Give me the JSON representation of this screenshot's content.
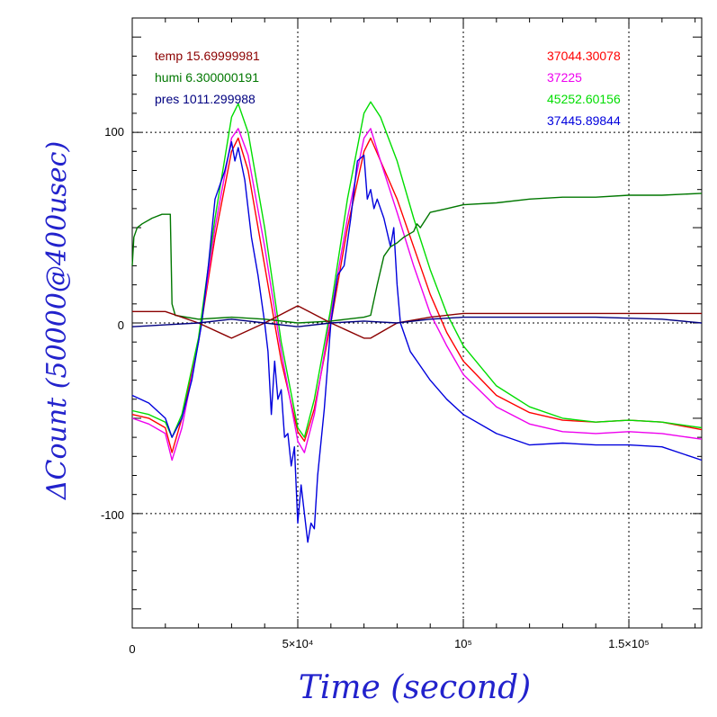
{
  "chart_data": {
    "type": "line",
    "xlabel": "Time (second)",
    "ylabel": "ΔCount (50000@400usec)",
    "xlim": [
      0,
      172000
    ],
    "ylim": [
      -160,
      160
    ],
    "grid": true,
    "x_ticks": [
      {
        "value": 0,
        "label": "0"
      },
      {
        "value": 50000,
        "label": "5×10⁴"
      },
      {
        "value": 100000,
        "label": "10⁵"
      },
      {
        "value": 150000,
        "label": "1.5×10⁵"
      }
    ],
    "y_ticks": [
      {
        "value": 100,
        "label": "100"
      },
      {
        "value": 0,
        "label": "0"
      },
      {
        "value": -100,
        "label": "-100"
      }
    ],
    "annotations_left": [
      {
        "text": "temp 15.69999981",
        "color": "#8b0000"
      },
      {
        "text": "humi 6.300000191",
        "color": "#007700"
      },
      {
        "text": "pres 1011.299988",
        "color": "#000080"
      }
    ],
    "annotations_right": [
      {
        "text": "37044.30078",
        "color": "#ff0000"
      },
      {
        "text": "37225",
        "color": "#ee00ee"
      },
      {
        "text": "45252.60156",
        "color": "#00dd00"
      },
      {
        "text": "37445.89844",
        "color": "#0000dd"
      }
    ],
    "series": [
      {
        "color": "#ff0000",
        "x": [
          0,
          5000,
          10000,
          12000,
          15000,
          20000,
          25000,
          30000,
          32000,
          35000,
          40000,
          45000,
          50000,
          52000,
          55000,
          60000,
          65000,
          70000,
          72000,
          75000,
          80000,
          85000,
          90000,
          95000,
          100000,
          110000,
          120000,
          130000,
          140000,
          150000,
          160000,
          172000
        ],
        "y": [
          -48,
          -50,
          -55,
          -68,
          -50,
          -10,
          45,
          90,
          97,
          80,
          30,
          -20,
          -57,
          -62,
          -45,
          0,
          50,
          90,
          97,
          85,
          65,
          40,
          15,
          -5,
          -20,
          -38,
          -47,
          -51,
          -52,
          -51,
          -52,
          -56
        ]
      },
      {
        "color": "#ee00ee",
        "x": [
          0,
          5000,
          10000,
          12000,
          15000,
          20000,
          25000,
          30000,
          32000,
          35000,
          40000,
          45000,
          50000,
          52000,
          55000,
          60000,
          65000,
          70000,
          72000,
          75000,
          80000,
          85000,
          90000,
          95000,
          100000,
          110000,
          120000,
          130000,
          140000,
          150000,
          160000,
          172000
        ],
        "y": [
          -50,
          -53,
          -58,
          -72,
          -55,
          -10,
          50,
          97,
          102,
          88,
          40,
          -15,
          -62,
          -68,
          -48,
          5,
          55,
          97,
          102,
          85,
          58,
          30,
          5,
          -12,
          -27,
          -44,
          -53,
          -57,
          -58,
          -57,
          -58,
          -61
        ]
      },
      {
        "color": "#00dd00",
        "x": [
          0,
          5000,
          10000,
          12000,
          15000,
          20000,
          25000,
          30000,
          32000,
          35000,
          40000,
          45000,
          50000,
          52000,
          55000,
          60000,
          65000,
          70000,
          72000,
          75000,
          80000,
          85000,
          90000,
          95000,
          100000,
          110000,
          120000,
          130000,
          140000,
          150000,
          160000,
          172000
        ],
        "y": [
          -46,
          -48,
          -52,
          -60,
          -48,
          -8,
          55,
          108,
          115,
          100,
          50,
          -10,
          -55,
          -60,
          -40,
          8,
          65,
          110,
          116,
          108,
          85,
          55,
          28,
          5,
          -12,
          -33,
          -44,
          -50,
          -52,
          -51,
          -52,
          -55
        ]
      },
      {
        "color": "#0000dd",
        "x": [
          0,
          5000,
          10000,
          12000,
          15000,
          18000,
          21000,
          23000,
          25000,
          28000,
          30000,
          31000,
          32000,
          34000,
          36000,
          38000,
          40000,
          41000,
          42000,
          43000,
          44000,
          45000,
          46000,
          47000,
          48000,
          49000,
          50000,
          51000,
          52000,
          53000,
          54000,
          55000,
          56000,
          58000,
          60000,
          62000,
          64000,
          66000,
          68000,
          70000,
          71000,
          72000,
          73000,
          74000,
          76000,
          78000,
          79000,
          80000,
          81000,
          82000,
          84000,
          86000,
          90000,
          95000,
          100000,
          110000,
          120000,
          130000,
          140000,
          150000,
          160000,
          172000
        ],
        "y": [
          -38,
          -42,
          -50,
          -60,
          -50,
          -30,
          0,
          30,
          65,
          80,
          95,
          85,
          92,
          75,
          45,
          25,
          0,
          -15,
          -48,
          -20,
          -40,
          -35,
          -60,
          -58,
          -75,
          -65,
          -105,
          -85,
          -100,
          -115,
          -105,
          -108,
          -80,
          -45,
          0,
          25,
          30,
          55,
          85,
          88,
          65,
          70,
          60,
          65,
          55,
          40,
          50,
          20,
          0,
          -5,
          -15,
          -20,
          -30,
          -40,
          -48,
          -58,
          -64,
          -63,
          -64,
          -64,
          -65,
          -72
        ]
      },
      {
        "color": "#007700",
        "x": [
          0,
          500,
          1500,
          3000,
          6000,
          9000,
          11500,
          12000,
          13000,
          20000,
          30000,
          40000,
          50000,
          60000,
          70000,
          72000,
          74000,
          76000,
          78000,
          80000,
          82000,
          85000,
          86000,
          87000,
          90000,
          95000,
          100000,
          110000,
          120000,
          130000,
          140000,
          150000,
          160000,
          172000
        ],
        "y": [
          30,
          45,
          50,
          52,
          55,
          57,
          57,
          10,
          4,
          2,
          3,
          2,
          0,
          1,
          3,
          4,
          20,
          35,
          40,
          42,
          45,
          48,
          52,
          50,
          58,
          60,
          62,
          63,
          65,
          66,
          66,
          67,
          67,
          68
        ]
      },
      {
        "color": "#8b0000",
        "x": [
          0,
          10000,
          20000,
          30000,
          40000,
          50000,
          60000,
          70000,
          72000,
          80000,
          90000,
          100000,
          120000,
          140000,
          160000,
          172000
        ],
        "y": [
          6,
          6,
          0,
          -8,
          0,
          9,
          0,
          -8,
          -8,
          0,
          3,
          5,
          5,
          5,
          5,
          5
        ]
      },
      {
        "color": "#000080",
        "x": [
          0,
          10000,
          20000,
          30000,
          40000,
          50000,
          60000,
          70000,
          80000,
          90000,
          100000,
          120000,
          140000,
          160000,
          172000
        ],
        "y": [
          -2,
          -1,
          0,
          2,
          0,
          -2,
          0,
          1,
          0,
          2,
          3,
          3,
          3,
          2,
          0
        ]
      }
    ]
  }
}
